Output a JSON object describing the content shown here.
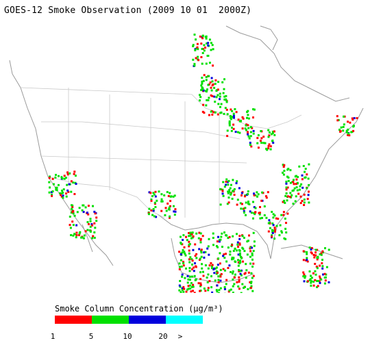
{
  "title": "GOES-12 Smoke Observation (2009 10 01  2000Z)",
  "legend": {
    "title": "Smoke Column Concentration (μg/m³)",
    "bins": [
      {
        "color": "#ff0000"
      },
      {
        "color": "#00e000"
      },
      {
        "color": "#0000dd"
      },
      {
        "color": "#00ffff"
      }
    ],
    "ticks": [
      "1",
      "5",
      "10",
      "20",
      ">"
    ]
  },
  "colors": {
    "background": "#ffffff",
    "land_lines": "#c8c8c8",
    "coast": "#9a9a9a"
  },
  "map": {
    "projection": "lambert-conformal",
    "region": "North America",
    "datetime": "2009-10-01 20:00Z"
  }
}
